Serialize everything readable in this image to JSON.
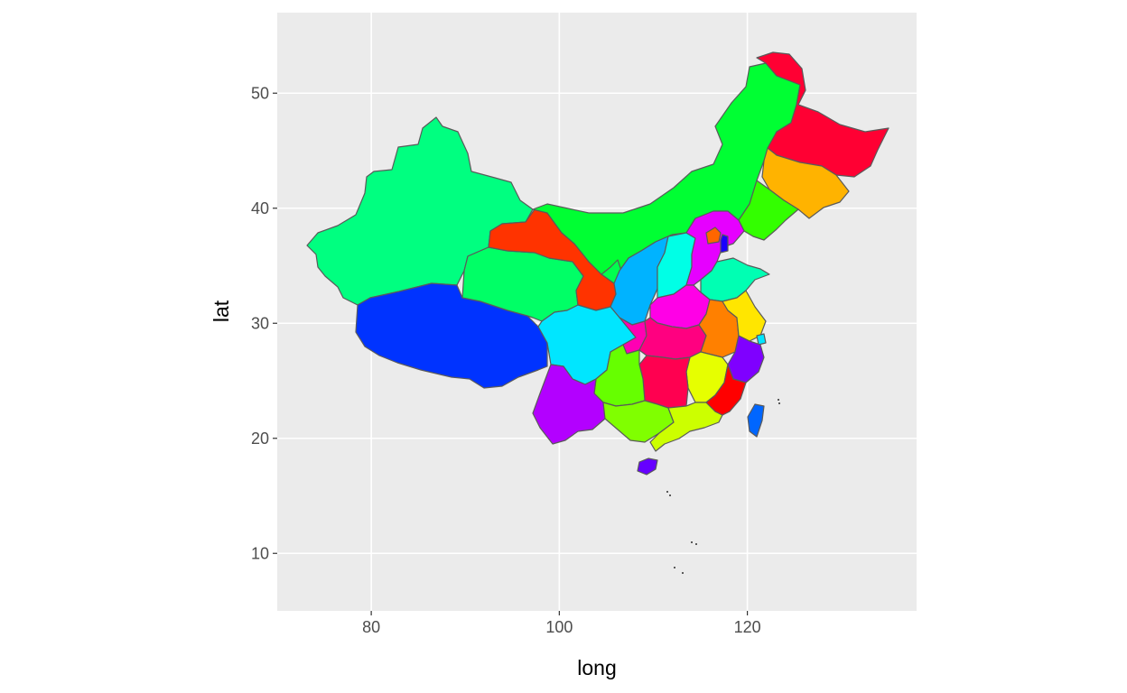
{
  "chart_data": {
    "type": "map",
    "xlabel": "long",
    "ylabel": "lat",
    "xlim": [
      70,
      138
    ],
    "ylim": [
      5,
      57
    ],
    "x_ticks": [
      80,
      100,
      120
    ],
    "y_ticks": [
      10,
      20,
      30,
      40,
      50
    ],
    "grid": true,
    "legend": "none",
    "panel_background": "#ebebeb",
    "border_color": "#5a5a5a",
    "regions": [
      {
        "id": "xinjiang",
        "fill": "#00ff80"
      },
      {
        "id": "tibet",
        "fill": "#0033ff"
      },
      {
        "id": "qinghai",
        "fill": "#00ff66"
      },
      {
        "id": "gansu",
        "fill": "#ff3300"
      },
      {
        "id": "inner-mongolia",
        "fill": "#00ff33"
      },
      {
        "id": "heilongjiang",
        "fill": "#ff0033"
      },
      {
        "id": "jilin",
        "fill": "#ffb300"
      },
      {
        "id": "liaoning",
        "fill": "#33ff00"
      },
      {
        "id": "ningxia",
        "fill": "#00ff4d"
      },
      {
        "id": "shaanxi",
        "fill": "#00b3ff"
      },
      {
        "id": "shanxi",
        "fill": "#00ffe6"
      },
      {
        "id": "hebei",
        "fill": "#e600ff"
      },
      {
        "id": "beijing",
        "fill": "#ff6600"
      },
      {
        "id": "tianjin",
        "fill": "#1a00ff"
      },
      {
        "id": "shandong",
        "fill": "#00ffb3"
      },
      {
        "id": "henan",
        "fill": "#ff00e6"
      },
      {
        "id": "sichuan",
        "fill": "#00e6ff"
      },
      {
        "id": "chongqing",
        "fill": "#ff00b3"
      },
      {
        "id": "hubei",
        "fill": "#ff0080"
      },
      {
        "id": "anhui",
        "fill": "#ff8000"
      },
      {
        "id": "jiangsu",
        "fill": "#ffe600"
      },
      {
        "id": "shanghai",
        "fill": "#00e6ff"
      },
      {
        "id": "zhejiang",
        "fill": "#7f00ff"
      },
      {
        "id": "jiangxi",
        "fill": "#e6ff00"
      },
      {
        "id": "hunan",
        "fill": "#ff0050"
      },
      {
        "id": "guizhou",
        "fill": "#66ff00"
      },
      {
        "id": "yunnan",
        "fill": "#b300ff"
      },
      {
        "id": "guangxi",
        "fill": "#80ff00"
      },
      {
        "id": "guangdong",
        "fill": "#ccff00"
      },
      {
        "id": "fujian",
        "fill": "#ff0000"
      },
      {
        "id": "taiwan",
        "fill": "#0066ff"
      },
      {
        "id": "hainan",
        "fill": "#6600ff"
      },
      {
        "id": "south-china-sea-islands",
        "fill": "#5a5a5a"
      }
    ]
  }
}
